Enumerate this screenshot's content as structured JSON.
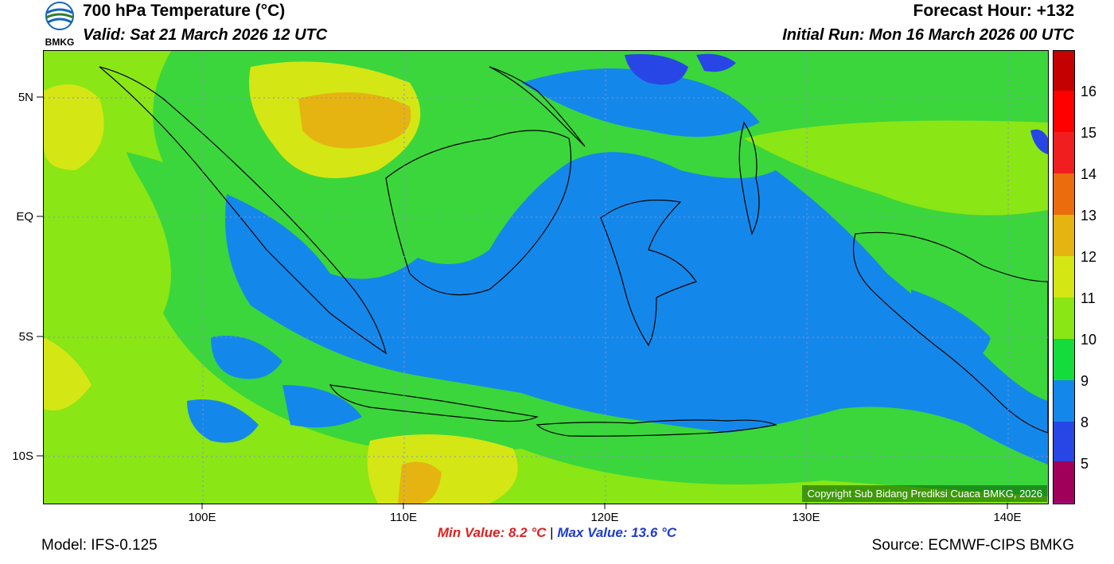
{
  "header": {
    "title": "700 hPa Temperature (°C)",
    "valid": "Valid: Sat 21 March 2026 12 UTC",
    "forecast_hour": "Forecast Hour: +132",
    "initial_run": "Initial Run: Mon 16 March 2026 00 UTC"
  },
  "logo": {
    "text": "BMKG",
    "color": "#1565c0"
  },
  "map": {
    "lat_labels": [
      "5N",
      "EQ",
      "5S",
      "10S"
    ],
    "lon_labels": [
      "100E",
      "110E",
      "120E",
      "130E",
      "140E"
    ],
    "copyright": "Copyright Sub Bidang Prediksi Cuaca BMKG, 2026",
    "gridline_style": "dotted"
  },
  "colorbar": {
    "labels": [
      "16",
      "15",
      "14",
      "13",
      "12",
      "11",
      "10",
      "9",
      "8",
      "5"
    ],
    "colors": [
      "#c40000",
      "#ff0000",
      "#f01e1e",
      "#ea6c0c",
      "#e6b410",
      "#d4e614",
      "#8ae614",
      "#14dc3c",
      "#1488ea",
      "#2846e6",
      "#a012e6",
      "#a0005a"
    ]
  },
  "stats": {
    "min_label": "Min Value: 8.2 °C",
    "separator": "|",
    "max_label": "Max Value: 13.6 °C",
    "min_color": "#e02020",
    "max_color": "#1e3cd2"
  },
  "footer": {
    "model": "Model: IFS-0.125",
    "source": "Source: ECMWF-CIPS BMKG"
  }
}
